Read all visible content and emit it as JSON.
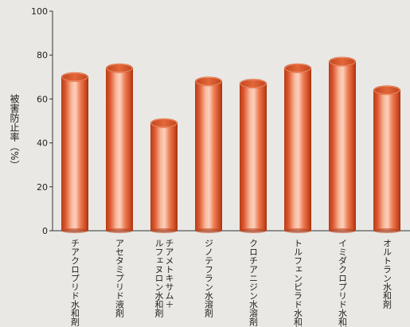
{
  "chart_data": {
    "type": "bar",
    "title": "",
    "xlabel": "",
    "ylabel": "被害防止率（%）",
    "ylim": [
      0,
      100
    ],
    "yticks": [
      0,
      20,
      40,
      60,
      80,
      100
    ],
    "grid": false,
    "categories": [
      "チアクロプリド水和剤",
      "アセタミプリド液剤",
      "チアメトキサム＋ルフェヌロン水和剤",
      "ジノテフラン水溶剤",
      "クロチアニジン水溶剤",
      "トルフェンピラド水和剤",
      "イミダクロプリド水和剤",
      "オルトラン水和剤"
    ],
    "category_lines": [
      [
        "チアクロプリド水和剤"
      ],
      [
        "アセタミプリド液剤"
      ],
      [
        "チアメトキサム＋",
        "ルフェヌロン水和剤"
      ],
      [
        "ジノテフラン水溶剤"
      ],
      [
        "クロチアニジン水溶剤"
      ],
      [
        "トルフェンピラド水和剤"
      ],
      [
        "イミダクロプリド水和剤"
      ],
      [
        "オルトラン水和剤"
      ]
    ],
    "values": [
      70,
      74,
      49,
      68,
      67,
      74,
      77,
      64
    ],
    "bar_color": "#e86a3c"
  }
}
